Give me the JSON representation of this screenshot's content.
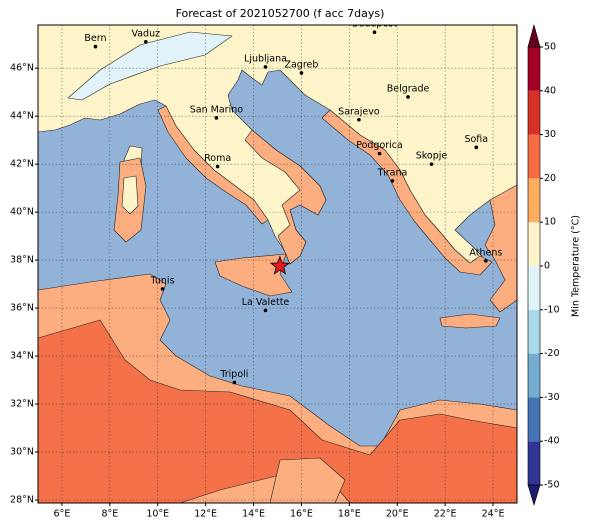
{
  "title": "Forecast of 2021052700 (f acc 7days)",
  "map": {
    "lonlim": [
      5,
      25
    ],
    "latlim": [
      27.875,
      47.8
    ],
    "grid": true,
    "xticks": [
      {
        "value": 6,
        "label": "6°E"
      },
      {
        "value": 8,
        "label": "8°E"
      },
      {
        "value": 10,
        "label": "10°E"
      },
      {
        "value": 12,
        "label": "12°E"
      },
      {
        "value": 14,
        "label": "14°E"
      },
      {
        "value": 16,
        "label": "16°E"
      },
      {
        "value": 18,
        "label": "18°E"
      },
      {
        "value": 20,
        "label": "20°E"
      },
      {
        "value": 22,
        "label": "22°E"
      },
      {
        "value": 24,
        "label": "24°E"
      }
    ],
    "yticks": [
      {
        "value": 28,
        "label": "28°N"
      },
      {
        "value": 30,
        "label": "30°N"
      },
      {
        "value": 32,
        "label": "32°N"
      },
      {
        "value": 34,
        "label": "34°N"
      },
      {
        "value": 36,
        "label": "36°N"
      },
      {
        "value": 38,
        "label": "38°N"
      },
      {
        "value": 40,
        "label": "40°N"
      },
      {
        "value": 42,
        "label": "42°N"
      },
      {
        "value": 44,
        "label": "44°N"
      },
      {
        "value": 46,
        "label": "46°N"
      }
    ],
    "cities": [
      {
        "name": "Bern",
        "lon": 7.4,
        "lat": 46.9
      },
      {
        "name": "Vaduz",
        "lon": 9.5,
        "lat": 47.1
      },
      {
        "name": "Budapest",
        "lon": 19.05,
        "lat": 47.5
      },
      {
        "name": "Ljubljana",
        "lon": 14.5,
        "lat": 46.05
      },
      {
        "name": "Zagreb",
        "lon": 16.0,
        "lat": 45.8
      },
      {
        "name": "Belgrade",
        "lon": 20.45,
        "lat": 44.8
      },
      {
        "name": "San Marino",
        "lon": 12.45,
        "lat": 43.93
      },
      {
        "name": "Sarajevo",
        "lon": 18.4,
        "lat": 43.85
      },
      {
        "name": "Sofia",
        "lon": 23.3,
        "lat": 42.7
      },
      {
        "name": "Podgorica",
        "lon": 19.26,
        "lat": 42.44
      },
      {
        "name": "Skopje",
        "lon": 21.43,
        "lat": 42.0
      },
      {
        "name": "Roma",
        "lon": 12.5,
        "lat": 41.9
      },
      {
        "name": "Tirana",
        "lon": 19.8,
        "lat": 41.3
      },
      {
        "name": "Athens",
        "lon": 23.7,
        "lat": 37.97
      },
      {
        "name": "Tunis",
        "lon": 10.2,
        "lat": 36.8
      },
      {
        "name": "La Valette",
        "lon": 14.5,
        "lat": 35.9
      },
      {
        "name": "Tripoli",
        "lon": 13.2,
        "lat": 32.9
      }
    ],
    "marker": {
      "lon": 15.1,
      "lat": 37.75,
      "color": "#e8191e"
    }
  },
  "colorbar": {
    "label": "Min Temperature (°C)",
    "ticks": [
      -50,
      -40,
      -30,
      -20,
      -10,
      0,
      10,
      20,
      30,
      40,
      50
    ],
    "colors": [
      "#313695",
      "#4575b4",
      "#74add1",
      "#abd9e9",
      "#e0f3f8",
      "#fdf5c9",
      "#fdae61",
      "#f46d43",
      "#d73027",
      "#a50026"
    ],
    "extend_colors": [
      "#1c1c6e",
      "#67001f"
    ]
  }
}
